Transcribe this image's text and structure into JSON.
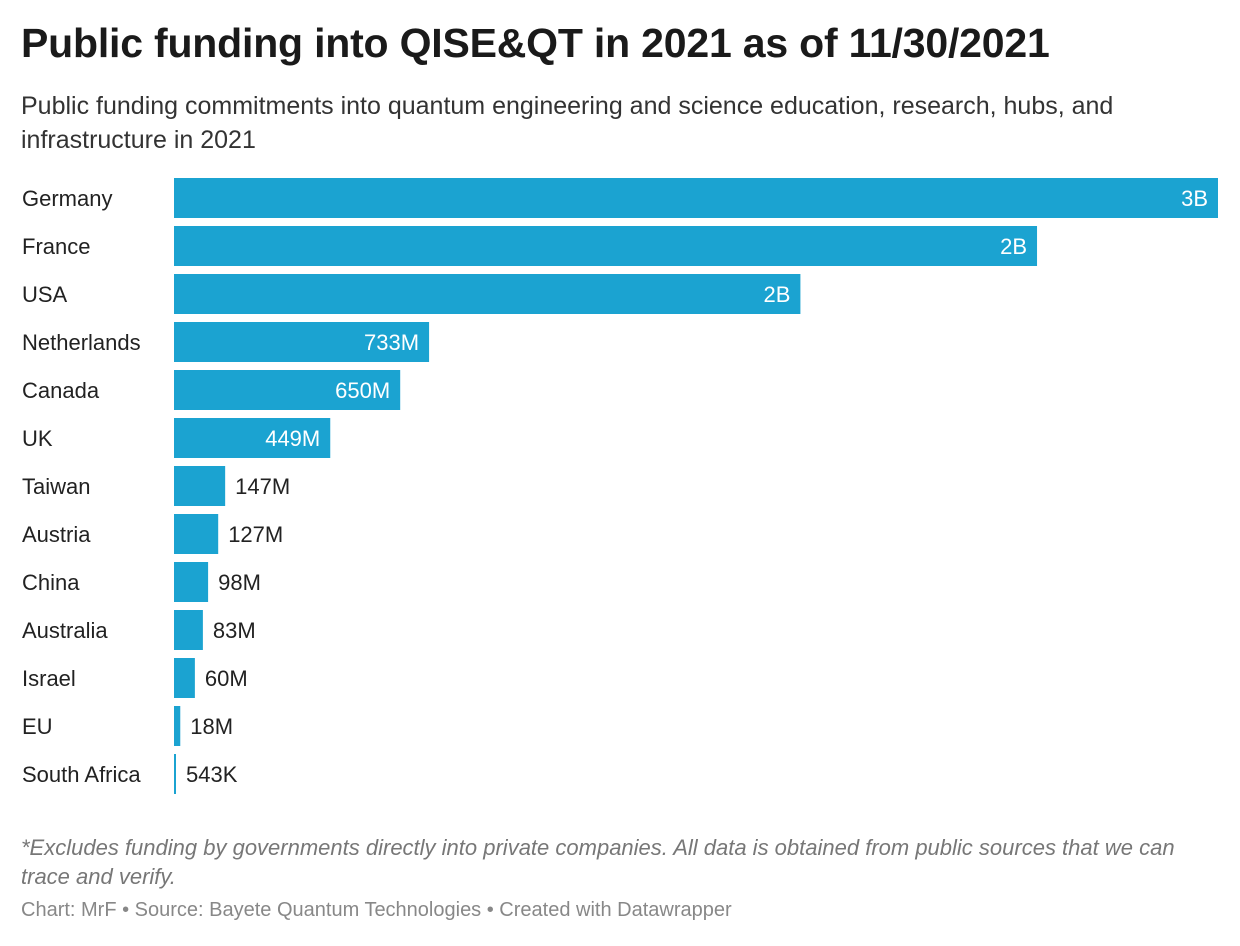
{
  "header": {
    "title": "Public funding into QISE&QT in 2021 as of 11/30/2021",
    "subtitle": "Public funding commitments into quantum engineering and science education, research, hubs, and infrastructure in 2021"
  },
  "footer": {
    "note": "*Excludes funding by governments directly into private companies. All data is obtained from public sources that we can trace and verify.",
    "byline": "Chart: MrF • Source: Bayete Quantum Technologies • Created with Datawrapper"
  },
  "chart_data": {
    "type": "bar",
    "orientation": "horizontal",
    "bar_color": "#1ba3d1",
    "categories": [
      "Germany",
      "France",
      "USA",
      "Netherlands",
      "Canada",
      "UK",
      "Taiwan",
      "Austria",
      "China",
      "Australia",
      "Israel",
      "EU",
      "South Africa"
    ],
    "values": [
      3000000000,
      2480000000,
      1800000000,
      733000000,
      650000000,
      449000000,
      147000000,
      127000000,
      98000000,
      83000000,
      60000000,
      18000000,
      543000
    ],
    "labels": [
      "3B",
      "2B",
      "2B",
      "733M",
      "650M",
      "449M",
      "147M",
      "127M",
      "98M",
      "83M",
      "60M",
      "18M",
      "543K"
    ],
    "xlim": [
      0,
      3000000000
    ],
    "grid": false,
    "legend": "none"
  }
}
